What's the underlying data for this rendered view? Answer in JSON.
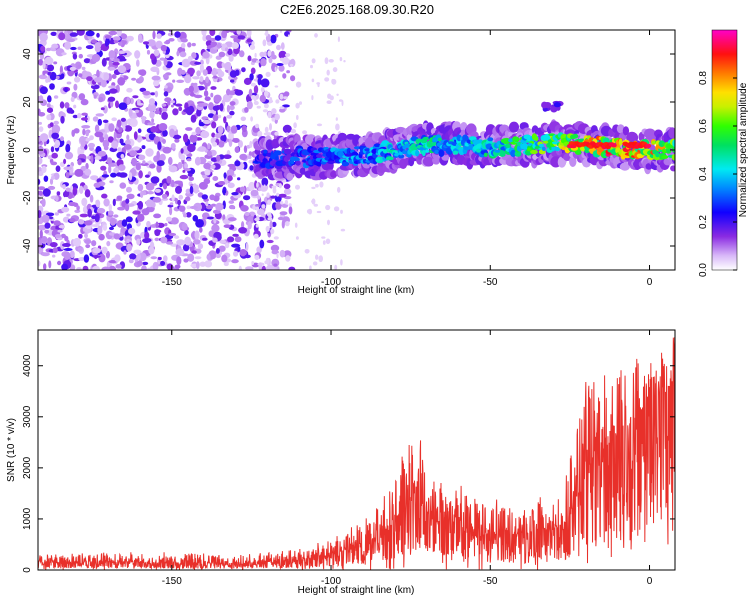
{
  "title": "C2E6.2025.168.09.30.R20",
  "chart_data": [
    {
      "type": "heatmap",
      "title": "C2E6.2025.168.09.30.R20",
      "xlabel": "Height of straight line (km)",
      "ylabel": "Frequency (Hz)",
      "xlim": [
        -192,
        8
      ],
      "ylim": [
        -50,
        50
      ],
      "x_ticks": [
        "-150",
        "-100",
        "-50",
        "0"
      ],
      "y_ticks": [
        "-40",
        "-20",
        "0",
        "20",
        "40"
      ],
      "colorbar": {
        "label": "Normalized spectral amplitude",
        "range": [
          0,
          1
        ],
        "ticks": [
          "0.0",
          "0.2",
          "0.4",
          "0.6",
          "0.8"
        ],
        "colormap": "rainbow (purple-blue-cyan-green-yellow-orange-red-magenta)"
      },
      "description": "Noise speckle (low amplitude, purple) fills the band for heights below about -120 km; from about -123 km to 8 km a narrow high-amplitude signal band centred near 0 Hz (about -7 to +8 Hz wide) rises in amplitude toward 0 km, with peaks (red) near -25 km to -5 km; small secondary blob near -32 km at about +18 Hz.",
      "signal_band": {
        "x": [
          -123,
          -110,
          -100,
          -90,
          -80,
          -70,
          -60,
          -50,
          -40,
          -30,
          -20,
          -10,
          0,
          8
        ],
        "center_hz": [
          -4,
          -3,
          -3,
          -2,
          0,
          2,
          2,
          1,
          2,
          3,
          2,
          1,
          0,
          0
        ],
        "amplitude": [
          0.25,
          0.3,
          0.35,
          0.4,
          0.45,
          0.5,
          0.45,
          0.5,
          0.55,
          0.65,
          0.85,
          0.9,
          0.8,
          0.75
        ]
      }
    },
    {
      "type": "line",
      "xlabel": "Height of straight line (km)",
      "ylabel": "SNR (10 * v/v)",
      "xlim": [
        -192,
        8
      ],
      "ylim": [
        0,
        4700
      ],
      "x_ticks": [
        "-150",
        "-100",
        "-50",
        "0"
      ],
      "y_ticks": [
        "0",
        "1000",
        "2000",
        "3000",
        "4000"
      ],
      "color": "#e8302a",
      "series_envelope": {
        "x": [
          -192,
          -170,
          -150,
          -130,
          -120,
          -110,
          -100,
          -95,
          -90,
          -85,
          -80,
          -75,
          -72,
          -70,
          -65,
          -60,
          -55,
          -50,
          -45,
          -40,
          -35,
          -30,
          -25,
          -22,
          -20,
          -15,
          -10,
          -5,
          0,
          5,
          8
        ],
        "mean": [
          150,
          150,
          140,
          140,
          150,
          200,
          300,
          400,
          500,
          650,
          1000,
          1400,
          1400,
          1100,
          900,
          850,
          800,
          700,
          700,
          700,
          750,
          800,
          1000,
          1900,
          2200,
          2300,
          2700,
          2900,
          3400,
          3600,
          3600
        ],
        "max": [
          300,
          350,
          350,
          300,
          350,
          450,
          600,
          800,
          1000,
          1300,
          2000,
          2600,
          2600,
          1800,
          1700,
          1700,
          1500,
          1400,
          1400,
          1300,
          1400,
          1600,
          2200,
          3300,
          3700,
          3800,
          4100,
          4200,
          4200,
          4400,
          4700
        ]
      }
    }
  ]
}
